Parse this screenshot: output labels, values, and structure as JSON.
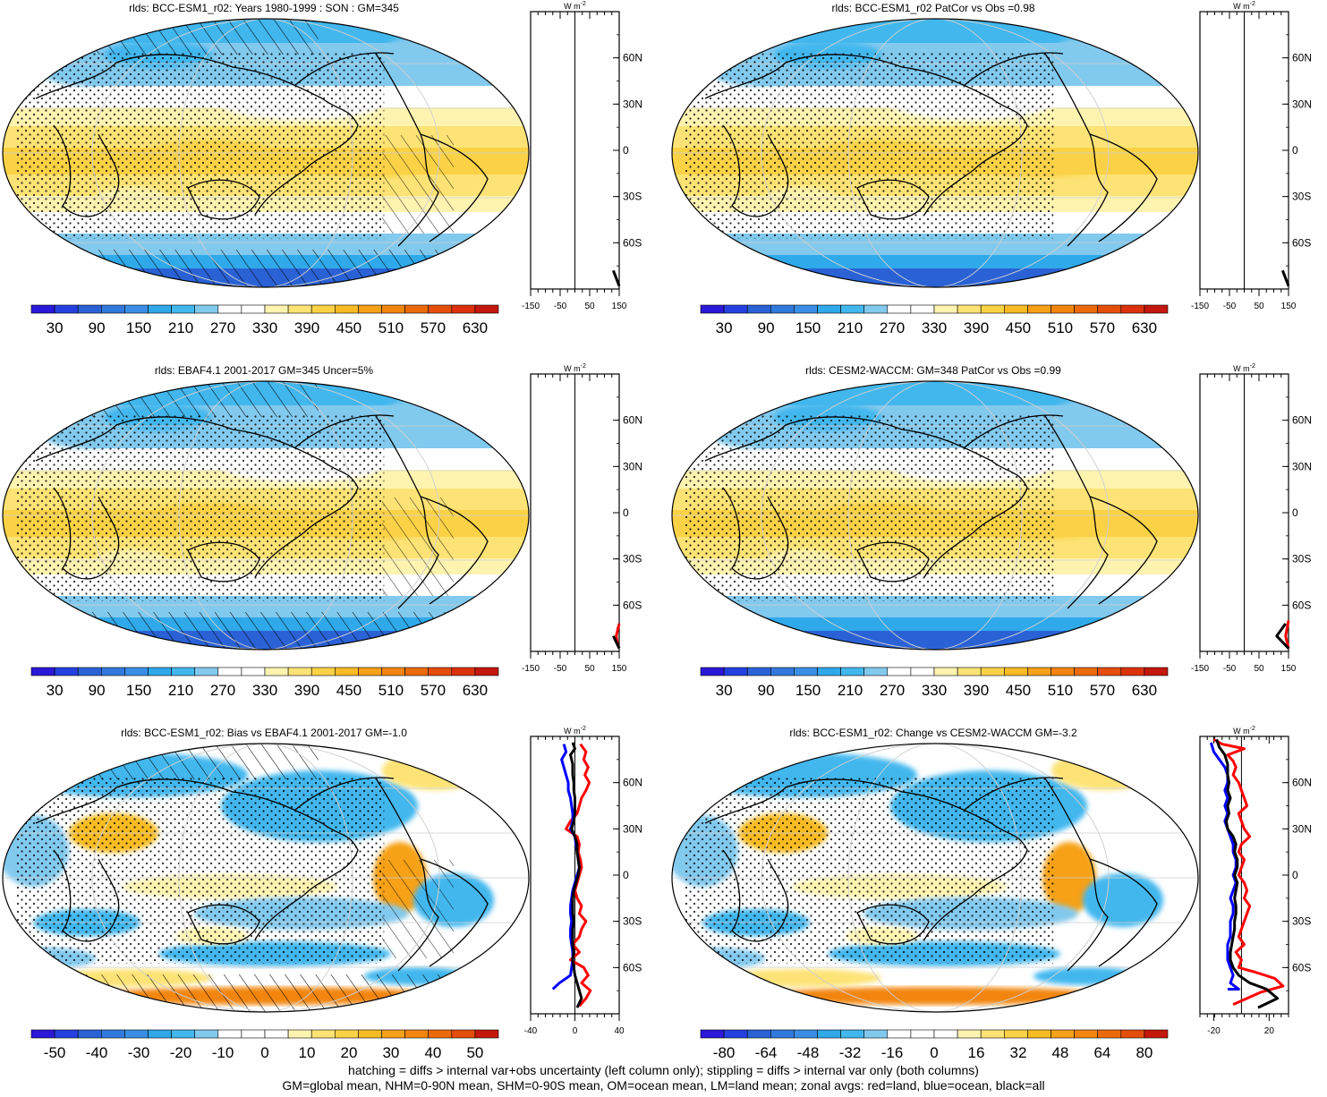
{
  "footer": {
    "line1": "hatching = diffs > internal var+obs uncertainty (left column only); stippling = diffs > internal var only (both columns)",
    "line2": "GM=global mean, NHM=0-90N mean, SHM=0-90S mean, OM=ocean mean, LM=land mean; zonal avgs: red=land, blue=ocean, black=all"
  },
  "colors": {
    "scale": [
      "#2b18d8",
      "#2540e0",
      "#2a62d6",
      "#3279dd",
      "#3a8ee5",
      "#2fa9ea",
      "#42b7ee",
      "#82c9ee",
      "#ffffff",
      "#ffffff",
      "#fff3b0",
      "#fde375",
      "#fbd246",
      "#f8bb24",
      "#f6a118",
      "#f2850f",
      "#ec6a0b",
      "#e54d0a",
      "#dc310b",
      "#c4170d"
    ],
    "land_line": "#ff0000",
    "ocean_line": "#0000ff",
    "all_line": "#000000"
  },
  "panels": [
    {
      "title": "rlds: BCC-ESM1_r02: Years 1980-1999 : SON : GM=345",
      "colorbar_labels": [
        "30",
        "90",
        "150",
        "210",
        "270",
        "330",
        "390",
        "450",
        "510",
        "570",
        "630"
      ],
      "pattern": "climo",
      "hatch": true,
      "zonal": {
        "unit_label": "W m",
        "unit_sup": "-2",
        "xticks": [
          "-150",
          "-50",
          "50",
          "150"
        ],
        "xlim": [
          -150,
          150
        ],
        "yticks": [
          "60N",
          "30N",
          "0",
          "30S",
          "60S"
        ],
        "lines": {
          "black": [
            [
              150,
              -88
            ],
            [
              130,
              -78
            ]
          ]
        }
      }
    },
    {
      "title": "rlds: BCC-ESM1_r02 PatCor vs Obs =0.98",
      "colorbar_labels": [
        "30",
        "90",
        "150",
        "210",
        "270",
        "330",
        "390",
        "450",
        "510",
        "570",
        "630"
      ],
      "pattern": "climo",
      "hatch": false,
      "zonal": {
        "unit_label": "W m",
        "unit_sup": "-2",
        "xticks": [
          "-150",
          "-50",
          "50",
          "150"
        ],
        "xlim": [
          -150,
          150
        ],
        "yticks": [
          "60N",
          "30N",
          "0",
          "30S",
          "60S"
        ],
        "lines": {
          "black": [
            [
              150,
              -88
            ],
            [
              130,
              -78
            ]
          ]
        }
      }
    },
    {
      "title": "rlds: EBAF4.1 2001-2017 GM=345 Uncer=5%",
      "colorbar_labels": [
        "30",
        "90",
        "150",
        "210",
        "270",
        "330",
        "390",
        "450",
        "510",
        "570",
        "630"
      ],
      "pattern": "climo",
      "hatch": true,
      "zonal": {
        "unit_label": "W m",
        "unit_sup": "-2",
        "xticks": [
          "-150",
          "-50",
          "50",
          "150"
        ],
        "xlim": [
          -150,
          150
        ],
        "yticks": [
          "60N",
          "30N",
          "0",
          "30S",
          "60S"
        ],
        "lines": {
          "red": [
            [
              145,
              -86
            ],
            [
              140,
              -80
            ],
            [
              150,
              -72
            ]
          ],
          "black": [
            [
              150,
              -88
            ],
            [
              130,
              -80
            ]
          ]
        }
      }
    },
    {
      "title": "rlds: CESM2-WACCM: GM=348 PatCor vs Obs =0.99",
      "colorbar_labels": [
        "30",
        "90",
        "150",
        "210",
        "270",
        "330",
        "390",
        "450",
        "510",
        "570",
        "630"
      ],
      "pattern": "climo",
      "hatch": false,
      "zonal": {
        "unit_label": "W m",
        "unit_sup": "-2",
        "xticks": [
          "-150",
          "-50",
          "50",
          "150"
        ],
        "xlim": [
          -150,
          150
        ],
        "yticks": [
          "60N",
          "30N",
          "0",
          "30S",
          "60S"
        ],
        "lines": {
          "red": [
            [
              150,
              -88
            ],
            [
              140,
              -80
            ],
            [
              150,
              -70
            ]
          ],
          "black": [
            [
              150,
              -88
            ],
            [
              110,
              -80
            ],
            [
              140,
              -72
            ]
          ]
        }
      }
    },
    {
      "title": "rlds: BCC-ESM1_r02: Bias vs EBAF4.1 2001-2017  GM=-1.0",
      "colorbar_labels": [
        "-50",
        "-40",
        "-30",
        "-20",
        "-10",
        "0",
        "10",
        "20",
        "30",
        "40",
        "50"
      ],
      "pattern": "diff",
      "hatch": true,
      "zonal": {
        "unit_label": "W m",
        "unit_sup": "-2",
        "xticks": [
          "-40",
          "0",
          "40"
        ],
        "xlim": [
          -40,
          40
        ],
        "yticks": [
          "60N",
          "30N",
          "0",
          "30S",
          "60S"
        ],
        "lines": {
          "red": [
            [
              5,
              85
            ],
            [
              10,
              80
            ],
            [
              8,
              75
            ],
            [
              12,
              70
            ],
            [
              9,
              65
            ],
            [
              13,
              60
            ],
            [
              10,
              55
            ],
            [
              6,
              50
            ],
            [
              4,
              45
            ],
            [
              2,
              40
            ],
            [
              -4,
              35
            ],
            [
              -8,
              30
            ],
            [
              2,
              25
            ],
            [
              4,
              20
            ],
            [
              3,
              15
            ],
            [
              5,
              10
            ],
            [
              6,
              5
            ],
            [
              4,
              0
            ],
            [
              2,
              -5
            ],
            [
              0,
              -10
            ],
            [
              2,
              -15
            ],
            [
              6,
              -20
            ],
            [
              4,
              -25
            ],
            [
              10,
              -30
            ],
            [
              6,
              -35
            ],
            [
              4,
              -40
            ],
            [
              -2,
              -45
            ],
            [
              4,
              -50
            ],
            [
              -4,
              -55
            ],
            [
              8,
              -60
            ],
            [
              12,
              -65
            ],
            [
              6,
              -70
            ],
            [
              14,
              -75
            ],
            [
              10,
              -80
            ],
            [
              4,
              -85
            ]
          ],
          "blue": [
            [
              -10,
              85
            ],
            [
              -8,
              80
            ],
            [
              -12,
              75
            ],
            [
              -10,
              70
            ],
            [
              -8,
              65
            ],
            [
              -6,
              60
            ],
            [
              -6,
              55
            ],
            [
              -4,
              50
            ],
            [
              -3,
              45
            ],
            [
              -2,
              40
            ],
            [
              -2,
              35
            ],
            [
              -4,
              30
            ],
            [
              0,
              25
            ],
            [
              1,
              20
            ],
            [
              2,
              15
            ],
            [
              3,
              10
            ],
            [
              4,
              5
            ],
            [
              2,
              0
            ],
            [
              0,
              -5
            ],
            [
              -2,
              -10
            ],
            [
              -3,
              -15
            ],
            [
              -4,
              -20
            ],
            [
              -4,
              -25
            ],
            [
              -3,
              -30
            ],
            [
              -4,
              -35
            ],
            [
              -4,
              -40
            ],
            [
              -3,
              -45
            ],
            [
              -2,
              -50
            ],
            [
              -2,
              -55
            ],
            [
              -3,
              -60
            ],
            [
              -4,
              -65
            ],
            [
              -14,
              -70
            ],
            [
              -20,
              -74
            ]
          ],
          "black": [
            [
              -2,
              86
            ],
            [
              0,
              82
            ],
            [
              -4,
              78
            ],
            [
              -2,
              72
            ],
            [
              -2,
              65
            ],
            [
              -1,
              60
            ],
            [
              -1,
              55
            ],
            [
              0,
              50
            ],
            [
              0,
              45
            ],
            [
              0,
              40
            ],
            [
              -1,
              35
            ],
            [
              -3,
              30
            ],
            [
              0,
              25
            ],
            [
              2,
              20
            ],
            [
              2,
              15
            ],
            [
              3,
              10
            ],
            [
              4,
              5
            ],
            [
              3,
              0
            ],
            [
              1,
              -5
            ],
            [
              -1,
              -10
            ],
            [
              -2,
              -15
            ],
            [
              -2,
              -20
            ],
            [
              -2,
              -25
            ],
            [
              -1,
              -30
            ],
            [
              -2,
              -35
            ],
            [
              -2,
              -40
            ],
            [
              -2,
              -45
            ],
            [
              -1,
              -50
            ],
            [
              -2,
              -55
            ],
            [
              -1,
              -60
            ],
            [
              0,
              -65
            ],
            [
              2,
              -70
            ],
            [
              4,
              -75
            ],
            [
              6,
              -80
            ],
            [
              2,
              -86
            ]
          ]
        }
      }
    },
    {
      "title": "rlds: BCC-ESM1_r02: Change vs CESM2-WACCM GM=-3.2",
      "colorbar_labels": [
        "-80",
        "-64",
        "-48",
        "-32",
        "-16",
        "0",
        "16",
        "32",
        "48",
        "64",
        "80"
      ],
      "pattern": "diff",
      "hatch": false,
      "zonal": {
        "unit_label": "W m",
        "unit_sup": "-2",
        "xticks": [
          "-20",
          "20"
        ],
        "xlim": [
          -30,
          34
        ],
        "yticks": [
          "60N",
          "30N",
          "0",
          "30S",
          "60S"
        ],
        "lines": {
          "red": [
            [
              -20,
              88
            ],
            [
              -14,
              85
            ],
            [
              2,
              82
            ],
            [
              -10,
              78
            ],
            [
              -6,
              74
            ],
            [
              -4,
              70
            ],
            [
              -6,
              65
            ],
            [
              -2,
              60
            ],
            [
              0,
              55
            ],
            [
              2,
              50
            ],
            [
              4,
              45
            ],
            [
              -2,
              40
            ],
            [
              0,
              35
            ],
            [
              2,
              30
            ],
            [
              6,
              25
            ],
            [
              0,
              20
            ],
            [
              -2,
              15
            ],
            [
              2,
              10
            ],
            [
              0,
              5
            ],
            [
              -2,
              0
            ],
            [
              2,
              -5
            ],
            [
              4,
              -10
            ],
            [
              2,
              -15
            ],
            [
              6,
              -20
            ],
            [
              4,
              -25
            ],
            [
              2,
              -30
            ],
            [
              0,
              -35
            ],
            [
              -2,
              -40
            ],
            [
              2,
              -45
            ],
            [
              -4,
              -50
            ],
            [
              0,
              -55
            ],
            [
              -2,
              -60
            ],
            [
              10,
              -63
            ],
            [
              24,
              -67
            ],
            [
              30,
              -72
            ],
            [
              14,
              -76
            ],
            [
              4,
              -80
            ],
            [
              -6,
              -84
            ]
          ],
          "blue": [
            [
              -22,
              86
            ],
            [
              -20,
              80
            ],
            [
              -16,
              75
            ],
            [
              -12,
              70
            ],
            [
              -10,
              65
            ],
            [
              -10,
              60
            ],
            [
              -12,
              55
            ],
            [
              -10,
              50
            ],
            [
              -12,
              45
            ],
            [
              -10,
              40
            ],
            [
              -12,
              35
            ],
            [
              -10,
              30
            ],
            [
              -8,
              25
            ],
            [
              -6,
              20
            ],
            [
              -6,
              15
            ],
            [
              -4,
              10
            ],
            [
              -4,
              5
            ],
            [
              -6,
              0
            ],
            [
              -4,
              -5
            ],
            [
              -6,
              -10
            ],
            [
              -8,
              -15
            ],
            [
              -6,
              -20
            ],
            [
              -6,
              -25
            ],
            [
              -8,
              -30
            ],
            [
              -8,
              -35
            ],
            [
              -8,
              -40
            ],
            [
              -10,
              -45
            ],
            [
              -10,
              -50
            ],
            [
              -10,
              -55
            ],
            [
              -8,
              -60
            ],
            [
              -6,
              -65
            ],
            [
              -8,
              -70
            ],
            [
              -2,
              -74
            ],
            [
              -10,
              -74
            ]
          ],
          "black": [
            [
              -18,
              88
            ],
            [
              -16,
              83
            ],
            [
              -12,
              78
            ],
            [
              -10,
              72
            ],
            [
              -10,
              65
            ],
            [
              -9,
              60
            ],
            [
              -10,
              55
            ],
            [
              -8,
              50
            ],
            [
              -10,
              45
            ],
            [
              -9,
              40
            ],
            [
              -11,
              35
            ],
            [
              -10,
              30
            ],
            [
              -6,
              25
            ],
            [
              -4,
              20
            ],
            [
              -5,
              15
            ],
            [
              -3,
              10
            ],
            [
              -3,
              5
            ],
            [
              -5,
              0
            ],
            [
              -3,
              -5
            ],
            [
              -4,
              -10
            ],
            [
              -5,
              -15
            ],
            [
              -4,
              -20
            ],
            [
              -4,
              -25
            ],
            [
              -5,
              -30
            ],
            [
              -5,
              -35
            ],
            [
              -6,
              -40
            ],
            [
              -7,
              -45
            ],
            [
              -8,
              -50
            ],
            [
              -8,
              -55
            ],
            [
              -6,
              -60
            ],
            [
              -2,
              -65
            ],
            [
              6,
              -70
            ],
            [
              18,
              -74
            ],
            [
              26,
              -80
            ],
            [
              12,
              -86
            ]
          ]
        }
      }
    }
  ]
}
